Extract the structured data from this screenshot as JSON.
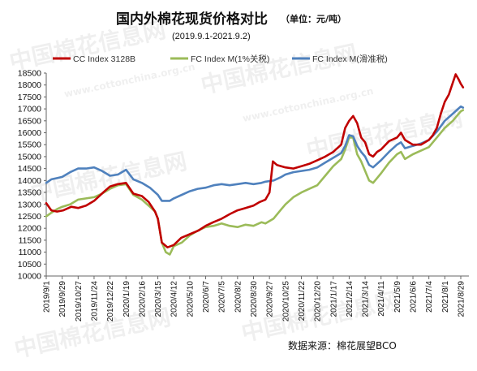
{
  "title": "国内外棉花现货价格对比",
  "unit": "（单位：元/吨）",
  "subtitle": "(2019.9.1-2021.9.2)",
  "source": "数据来源：棉花展望BCO",
  "watermark": "中国棉花信息网",
  "watermark_url": "www.cottonchina.org.cn",
  "chart_data": {
    "type": "line",
    "title": "国内外棉花现货价格对比",
    "subtitle": "(2019.9.1-2021.9.2)",
    "xlabel": "",
    "ylabel": "",
    "ylim": [
      10000,
      18500
    ],
    "ytick_step": 500,
    "grid": false,
    "legend": "top",
    "x_ticks": [
      "2019/9/1",
      "2019/9/29",
      "2019/10/27",
      "2019/11/24",
      "2019/12/22",
      "2020/1/19",
      "2020/2/16",
      "2020/3/15",
      "2020/4/12",
      "2020/5/10",
      "2020/6/7",
      "2020/7/5",
      "2020/8/2",
      "2020/8/30",
      "2020/9/27",
      "2020/10/25",
      "2020/11/22",
      "2020/12/20",
      "2021/1/17",
      "2021/2/14",
      "2021/3/14",
      "2021/4/11",
      "2021/5/9",
      "2021/6/6",
      "2021/7/4",
      "2021/8/1",
      "2021/8/29"
    ],
    "series": [
      {
        "name": "CC Index 3128B",
        "color": "#c00000",
        "points": [
          [
            "2019/9/1",
            13050
          ],
          [
            "2019/9/10",
            12750
          ],
          [
            "2019/9/20",
            12700
          ],
          [
            "2019/10/1",
            12750
          ],
          [
            "2019/10/15",
            12900
          ],
          [
            "2019/10/27",
            12850
          ],
          [
            "2019/11/10",
            12950
          ],
          [
            "2019/11/24",
            13150
          ],
          [
            "2019/12/10",
            13500
          ],
          [
            "2019/12/22",
            13750
          ],
          [
            "2020/1/5",
            13850
          ],
          [
            "2020/1/19",
            13900
          ],
          [
            "2020/2/1",
            13450
          ],
          [
            "2020/2/16",
            13350
          ],
          [
            "2020/2/28",
            13100
          ],
          [
            "2020/3/10",
            12700
          ],
          [
            "2020/3/15",
            12400
          ],
          [
            "2020/3/22",
            11400
          ],
          [
            "2020/4/1",
            11200
          ],
          [
            "2020/4/12",
            11300
          ],
          [
            "2020/4/25",
            11600
          ],
          [
            "2020/5/10",
            11750
          ],
          [
            "2020/5/25",
            11900
          ],
          [
            "2020/6/7",
            12100
          ],
          [
            "2020/6/20",
            12250
          ],
          [
            "2020/7/5",
            12400
          ],
          [
            "2020/7/20",
            12600
          ],
          [
            "2020/8/2",
            12750
          ],
          [
            "2020/8/16",
            12850
          ],
          [
            "2020/8/30",
            12950
          ],
          [
            "2020/9/10",
            13100
          ],
          [
            "2020/9/20",
            13200
          ],
          [
            "2020/9/27",
            13500
          ],
          [
            "2020/10/3",
            14800
          ],
          [
            "2020/10/10",
            14650
          ],
          [
            "2020/10/25",
            14550
          ],
          [
            "2020/11/8",
            14500
          ],
          [
            "2020/11/22",
            14600
          ],
          [
            "2020/12/6",
            14700
          ],
          [
            "2020/12/20",
            14850
          ],
          [
            "2021/1/3",
            15000
          ],
          [
            "2021/1/17",
            15200
          ],
          [
            "2021/1/31",
            15500
          ],
          [
            "2021/2/7",
            16200
          ],
          [
            "2021/2/14",
            16500
          ],
          [
            "2021/2/21",
            16700
          ],
          [
            "2021/2/28",
            16400
          ],
          [
            "2021/3/7",
            15800
          ],
          [
            "2021/3/14",
            15600
          ],
          [
            "2021/3/21",
            15100
          ],
          [
            "2021/3/28",
            15000
          ],
          [
            "2021/4/4",
            15200
          ],
          [
            "2021/4/11",
            15300
          ],
          [
            "2021/4/25",
            15650
          ],
          [
            "2021/5/9",
            15800
          ],
          [
            "2021/5/16",
            16000
          ],
          [
            "2021/5/23",
            15700
          ],
          [
            "2021/6/6",
            15500
          ],
          [
            "2021/6/20",
            15500
          ],
          [
            "2021/7/4",
            15700
          ],
          [
            "2021/7/11",
            15900
          ],
          [
            "2021/7/18",
            16200
          ],
          [
            "2021/7/25",
            16800
          ],
          [
            "2021/8/1",
            17300
          ],
          [
            "2021/8/8",
            17600
          ],
          [
            "2021/8/15",
            18100
          ],
          [
            "2021/8/20",
            18450
          ],
          [
            "2021/8/25",
            18250
          ],
          [
            "2021/8/29",
            18050
          ],
          [
            "2021/9/2",
            17900
          ]
        ]
      },
      {
        "name": "FC Index M(1%关税)",
        "color": "#9bbb59",
        "points": [
          [
            "2019/9/1",
            12500
          ],
          [
            "2019/9/10",
            12650
          ],
          [
            "2019/9/20",
            12800
          ],
          [
            "2019/9/29",
            12900
          ],
          [
            "2019/10/13",
            13000
          ],
          [
            "2019/10/27",
            13200
          ],
          [
            "2019/11/10",
            13250
          ],
          [
            "2019/11/24",
            13300
          ],
          [
            "2019/12/8",
            13450
          ],
          [
            "2019/12/22",
            13650
          ],
          [
            "2020/1/5",
            13800
          ],
          [
            "2020/1/19",
            13850
          ],
          [
            "2020/2/1",
            13400
          ],
          [
            "2020/2/16",
            13200
          ],
          [
            "2020/3/1",
            12900
          ],
          [
            "2020/3/10",
            12700
          ],
          [
            "2020/3/15",
            12400
          ],
          [
            "2020/3/22",
            11400
          ],
          [
            "2020/3/29",
            11000
          ],
          [
            "2020/4/5",
            10900
          ],
          [
            "2020/4/12",
            11250
          ],
          [
            "2020/4/26",
            11400
          ],
          [
            "2020/5/10",
            11700
          ],
          [
            "2020/5/24",
            11900
          ],
          [
            "2020/6/7",
            12050
          ],
          [
            "2020/6/21",
            12100
          ],
          [
            "2020/7/5",
            12200
          ],
          [
            "2020/7/19",
            12100
          ],
          [
            "2020/8/2",
            12050
          ],
          [
            "2020/8/16",
            12150
          ],
          [
            "2020/8/30",
            12100
          ],
          [
            "2020/9/13",
            12250
          ],
          [
            "2020/9/20",
            12200
          ],
          [
            "2020/10/4",
            12400
          ],
          [
            "2020/10/18",
            12800
          ],
          [
            "2020/10/25",
            13000
          ],
          [
            "2020/11/8",
            13300
          ],
          [
            "2020/11/22",
            13500
          ],
          [
            "2020/12/6",
            13650
          ],
          [
            "2020/12/20",
            13800
          ],
          [
            "2021/1/3",
            14200
          ],
          [
            "2021/1/17",
            14600
          ],
          [
            "2021/1/31",
            14900
          ],
          [
            "2021/2/7",
            15300
          ],
          [
            "2021/2/14",
            15800
          ],
          [
            "2021/2/21",
            15800
          ],
          [
            "2021/2/28",
            15100
          ],
          [
            "2021/3/7",
            14800
          ],
          [
            "2021/3/14",
            14400
          ],
          [
            "2021/3/21",
            14000
          ],
          [
            "2021/3/28",
            13900
          ],
          [
            "2021/4/4",
            14100
          ],
          [
            "2021/4/11",
            14300
          ],
          [
            "2021/4/25",
            14750
          ],
          [
            "2021/5/9",
            15100
          ],
          [
            "2021/5/16",
            15200
          ],
          [
            "2021/5/23",
            14900
          ],
          [
            "2021/6/6",
            15100
          ],
          [
            "2021/6/20",
            15250
          ],
          [
            "2021/7/4",
            15400
          ],
          [
            "2021/7/18",
            15800
          ],
          [
            "2021/8/1",
            16200
          ],
          [
            "2021/8/15",
            16500
          ],
          [
            "2021/8/22",
            16700
          ],
          [
            "2021/8/29",
            16900
          ],
          [
            "2021/9/2",
            16950
          ]
        ]
      },
      {
        "name": "FC Index M(滑准税)",
        "color": "#4f81bd",
        "points": [
          [
            "2019/9/1",
            13900
          ],
          [
            "2019/9/10",
            14050
          ],
          [
            "2019/9/20",
            14100
          ],
          [
            "2019/9/29",
            14150
          ],
          [
            "2019/10/13",
            14350
          ],
          [
            "2019/10/27",
            14500
          ],
          [
            "2019/11/10",
            14500
          ],
          [
            "2019/11/24",
            14550
          ],
          [
            "2019/12/8",
            14400
          ],
          [
            "2019/12/22",
            14200
          ],
          [
            "2020/1/5",
            14250
          ],
          [
            "2020/1/19",
            14450
          ],
          [
            "2020/2/1",
            14050
          ],
          [
            "2020/2/16",
            13900
          ],
          [
            "2020/3/1",
            13700
          ],
          [
            "2020/3/15",
            13400
          ],
          [
            "2020/3/22",
            13150
          ],
          [
            "2020/4/5",
            13150
          ],
          [
            "2020/4/12",
            13250
          ],
          [
            "2020/4/26",
            13400
          ],
          [
            "2020/5/10",
            13550
          ],
          [
            "2020/5/24",
            13650
          ],
          [
            "2020/6/7",
            13700
          ],
          [
            "2020/6/21",
            13800
          ],
          [
            "2020/7/5",
            13850
          ],
          [
            "2020/7/19",
            13800
          ],
          [
            "2020/8/2",
            13850
          ],
          [
            "2020/8/16",
            13900
          ],
          [
            "2020/8/30",
            13850
          ],
          [
            "2020/9/13",
            13900
          ],
          [
            "2020/9/20",
            13950
          ],
          [
            "2020/10/4",
            14000
          ],
          [
            "2020/10/18",
            14150
          ],
          [
            "2020/10/25",
            14250
          ],
          [
            "2020/11/8",
            14350
          ],
          [
            "2020/11/22",
            14400
          ],
          [
            "2020/12/6",
            14450
          ],
          [
            "2020/12/20",
            14550
          ],
          [
            "2021/1/3",
            14750
          ],
          [
            "2021/1/17",
            14950
          ],
          [
            "2021/1/31",
            15150
          ],
          [
            "2021/2/7",
            15450
          ],
          [
            "2021/2/14",
            15900
          ],
          [
            "2021/2/21",
            15850
          ],
          [
            "2021/2/28",
            15450
          ],
          [
            "2021/3/7",
            15200
          ],
          [
            "2021/3/14",
            15000
          ],
          [
            "2021/3/21",
            14650
          ],
          [
            "2021/3/28",
            14550
          ],
          [
            "2021/4/4",
            14700
          ],
          [
            "2021/4/11",
            14850
          ],
          [
            "2021/4/25",
            15200
          ],
          [
            "2021/5/9",
            15500
          ],
          [
            "2021/5/16",
            15600
          ],
          [
            "2021/5/23",
            15350
          ],
          [
            "2021/6/6",
            15450
          ],
          [
            "2021/6/20",
            15550
          ],
          [
            "2021/7/4",
            15700
          ],
          [
            "2021/7/18",
            16050
          ],
          [
            "2021/8/1",
            16500
          ],
          [
            "2021/8/15",
            16800
          ],
          [
            "2021/8/22",
            16950
          ],
          [
            "2021/8/29",
            17100
          ],
          [
            "2021/9/2",
            17050
          ]
        ]
      }
    ]
  }
}
